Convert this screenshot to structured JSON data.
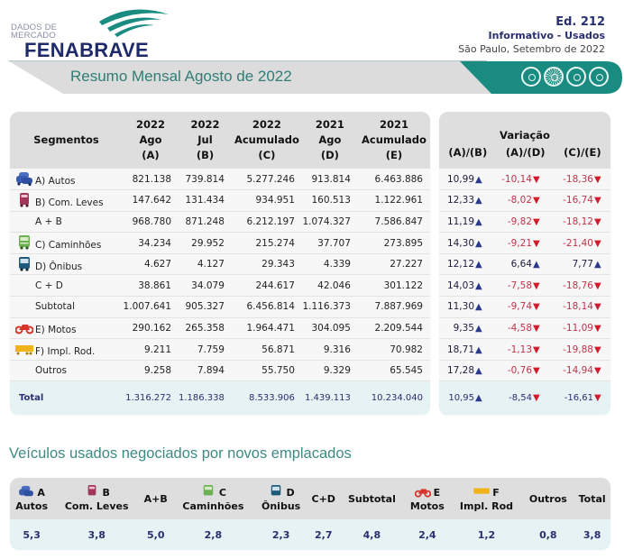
{
  "header": {
    "logo_small_line1": "DADOS DE",
    "logo_small_line2": "MERCADO",
    "logo_brand": "FENABRAVE",
    "edition": "Ed. 212",
    "publication": "Informativo - Usados",
    "place_date": "São Paulo, Setembro de 2022",
    "banner_title": "Resumo Mensal Agosto de 2022",
    "colors": {
      "teal": "#1a8b80",
      "navy": "#1f2a6b",
      "banner_gray": "#dcdcdc"
    }
  },
  "main_table": {
    "columns": [
      {
        "line1": "",
        "line2": "Segmentos",
        "line3": ""
      },
      {
        "line1": "2022",
        "line2": "Ago",
        "line3": "(A)"
      },
      {
        "line1": "2022",
        "line2": "Jul",
        "line3": "(B)"
      },
      {
        "line1": "2022",
        "line2": "Acumulado",
        "line3": "(C)"
      },
      {
        "line1": "2021",
        "line2": "Ago",
        "line3": "(D)"
      },
      {
        "line1": "2021",
        "line2": "Acumulado",
        "line3": "(E)"
      }
    ],
    "rows": [
      {
        "segment": "A) Autos",
        "icon": "car-icon",
        "a": "821.138",
        "b": "739.814",
        "c": "5.277.246",
        "d": "913.814",
        "e": "6.463.886"
      },
      {
        "segment": "B) Com. Leves",
        "icon": "van-icon",
        "a": "147.642",
        "b": "131.434",
        "c": "934.951",
        "d": "160.513",
        "e": "1.122.961"
      },
      {
        "segment": "A + B",
        "icon": "",
        "a": "968.780",
        "b": "871.248",
        "c": "6.212.197",
        "d": "1.074.327",
        "e": "7.586.847"
      },
      {
        "segment": "C) Caminhões",
        "icon": "truck-icon",
        "a": "34.234",
        "b": "29.952",
        "c": "215.274",
        "d": "37.707",
        "e": "273.895"
      },
      {
        "segment": "D) Ônibus",
        "icon": "bus-icon",
        "a": "4.627",
        "b": "4.127",
        "c": "29.343",
        "d": "4.339",
        "e": "27.227"
      },
      {
        "segment": "C + D",
        "icon": "",
        "a": "38.861",
        "b": "34.079",
        "c": "244.617",
        "d": "42.046",
        "e": "301.122"
      },
      {
        "segment": "Subtotal",
        "icon": "",
        "a": "1.007.641",
        "b": "905.327",
        "c": "6.456.814",
        "d": "1.116.373",
        "e": "7.887.969"
      },
      {
        "segment": "E) Motos",
        "icon": "motorcycle-icon",
        "a": "290.162",
        "b": "265.358",
        "c": "1.964.471",
        "d": "304.095",
        "e": "2.209.544"
      },
      {
        "segment": "F) Impl. Rod.",
        "icon": "trailer-icon",
        "a": "9.211",
        "b": "7.759",
        "c": "56.871",
        "d": "9.316",
        "e": "70.982"
      },
      {
        "segment": "Outros",
        "icon": "",
        "a": "9.258",
        "b": "7.894",
        "c": "55.750",
        "d": "9.329",
        "e": "65.545"
      },
      {
        "segment": "Total",
        "icon": "",
        "a": "1.316.272",
        "b": "1.186.338",
        "c": "8.533.906",
        "d": "1.439.113",
        "e": "10.234.040"
      }
    ]
  },
  "variation_table": {
    "title": "Variação",
    "columns": [
      "(A)/(B)",
      "(A)/(D)",
      "(C)/(E)"
    ],
    "rows": [
      {
        "ab": "10,99",
        "ad": "-10,14",
        "ce": "-18,36"
      },
      {
        "ab": "12,33",
        "ad": "-8,02",
        "ce": "-16,74"
      },
      {
        "ab": "11,19",
        "ad": "-9,82",
        "ce": "-18,12"
      },
      {
        "ab": "14,30",
        "ad": "-9,21",
        "ce": "-21,40"
      },
      {
        "ab": "12,12",
        "ad": "6,64",
        "ce": "7,77"
      },
      {
        "ab": "14,03",
        "ad": "-7,58",
        "ce": "-18,76"
      },
      {
        "ab": "11,30",
        "ad": "-9,74",
        "ce": "-18,14"
      },
      {
        "ab": "9,35",
        "ad": "-4,58",
        "ce": "-11,09"
      },
      {
        "ab": "18,71",
        "ad": "-1,13",
        "ce": "-19,88"
      },
      {
        "ab": "17,28",
        "ad": "-0,76",
        "ce": "-14,94"
      },
      {
        "ab": "10,95",
        "ad": "-8,54",
        "ce": "-16,61"
      }
    ],
    "arrow_up": "▲",
    "arrow_down": "▼",
    "colors": {
      "up": "#2d3a8c",
      "down": "#d01c2c",
      "negative_text": "#c0344a"
    }
  },
  "ratio_section": {
    "title": "Veículos usados negociados por novos emplacados",
    "columns": [
      {
        "letter": "A",
        "label": "Autos",
        "icon": "car-icon",
        "value": "5,3"
      },
      {
        "letter": "B",
        "label": "Com. Leves",
        "icon": "van-icon",
        "value": "3,8"
      },
      {
        "letter": "",
        "label": "A+B",
        "icon": "",
        "value": "5,0"
      },
      {
        "letter": "C",
        "label": "Caminhões",
        "icon": "truck-icon",
        "value": "2,8"
      },
      {
        "letter": "D",
        "label": "Ônibus",
        "icon": "bus-icon",
        "value": "2,3"
      },
      {
        "letter": "",
        "label": "C+D",
        "icon": "",
        "value": "2,7"
      },
      {
        "letter": "",
        "label": "Subtotal",
        "icon": "",
        "value": "4,8"
      },
      {
        "letter": "E",
        "label": "Motos",
        "icon": "motorcycle-icon",
        "value": "2,4"
      },
      {
        "letter": "F",
        "label": "Impl. Rod",
        "icon": "trailer-icon",
        "value": "1,2"
      },
      {
        "letter": "",
        "label": "Outros",
        "icon": "",
        "value": "0,8"
      },
      {
        "letter": "",
        "label": "Total",
        "icon": "",
        "value": "3,8"
      }
    ]
  }
}
